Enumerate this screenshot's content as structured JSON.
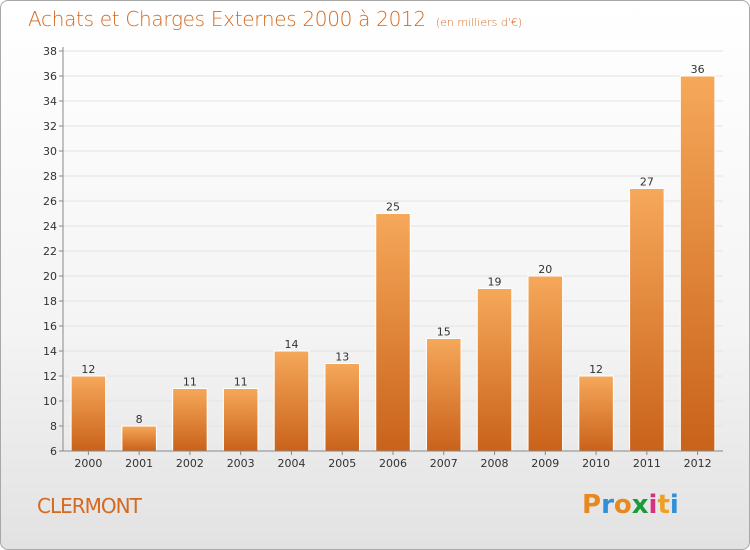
{
  "header": {
    "title": "Achats et Charges Externes 2000 à 2012",
    "unit": "(en milliers d'€)"
  },
  "footer": {
    "city": "CLERMONT",
    "brand_letters": [
      "P",
      "r",
      "o",
      "x",
      "i",
      "t",
      "i"
    ],
    "brand_colors": [
      "#e8891f",
      "#2f8fd8",
      "#e8891f",
      "#1a9a3a",
      "#d83080",
      "#f0a020",
      "#2f8fd8"
    ]
  },
  "colors": {
    "bar_light": "#f6a85a",
    "bar_dark": "#c9621a",
    "axis": "#888888",
    "grid": "#e3e3e3",
    "label": "#333333"
  },
  "chart_data": {
    "type": "bar",
    "categories": [
      "2000",
      "2001",
      "2002",
      "2003",
      "2004",
      "2005",
      "2006",
      "2007",
      "2008",
      "2009",
      "2010",
      "2011",
      "2012"
    ],
    "values": [
      12,
      8,
      11,
      11,
      14,
      13,
      25,
      15,
      19,
      20,
      12,
      27,
      36
    ],
    "title": "Achats et Charges Externes 2000 à 2012",
    "xlabel": "",
    "ylabel": "",
    "ylim": [
      6,
      38
    ],
    "yticks": [
      6,
      8,
      10,
      12,
      14,
      16,
      18,
      20,
      22,
      24,
      26,
      28,
      30,
      32,
      34,
      36,
      38
    ],
    "grid": true
  }
}
